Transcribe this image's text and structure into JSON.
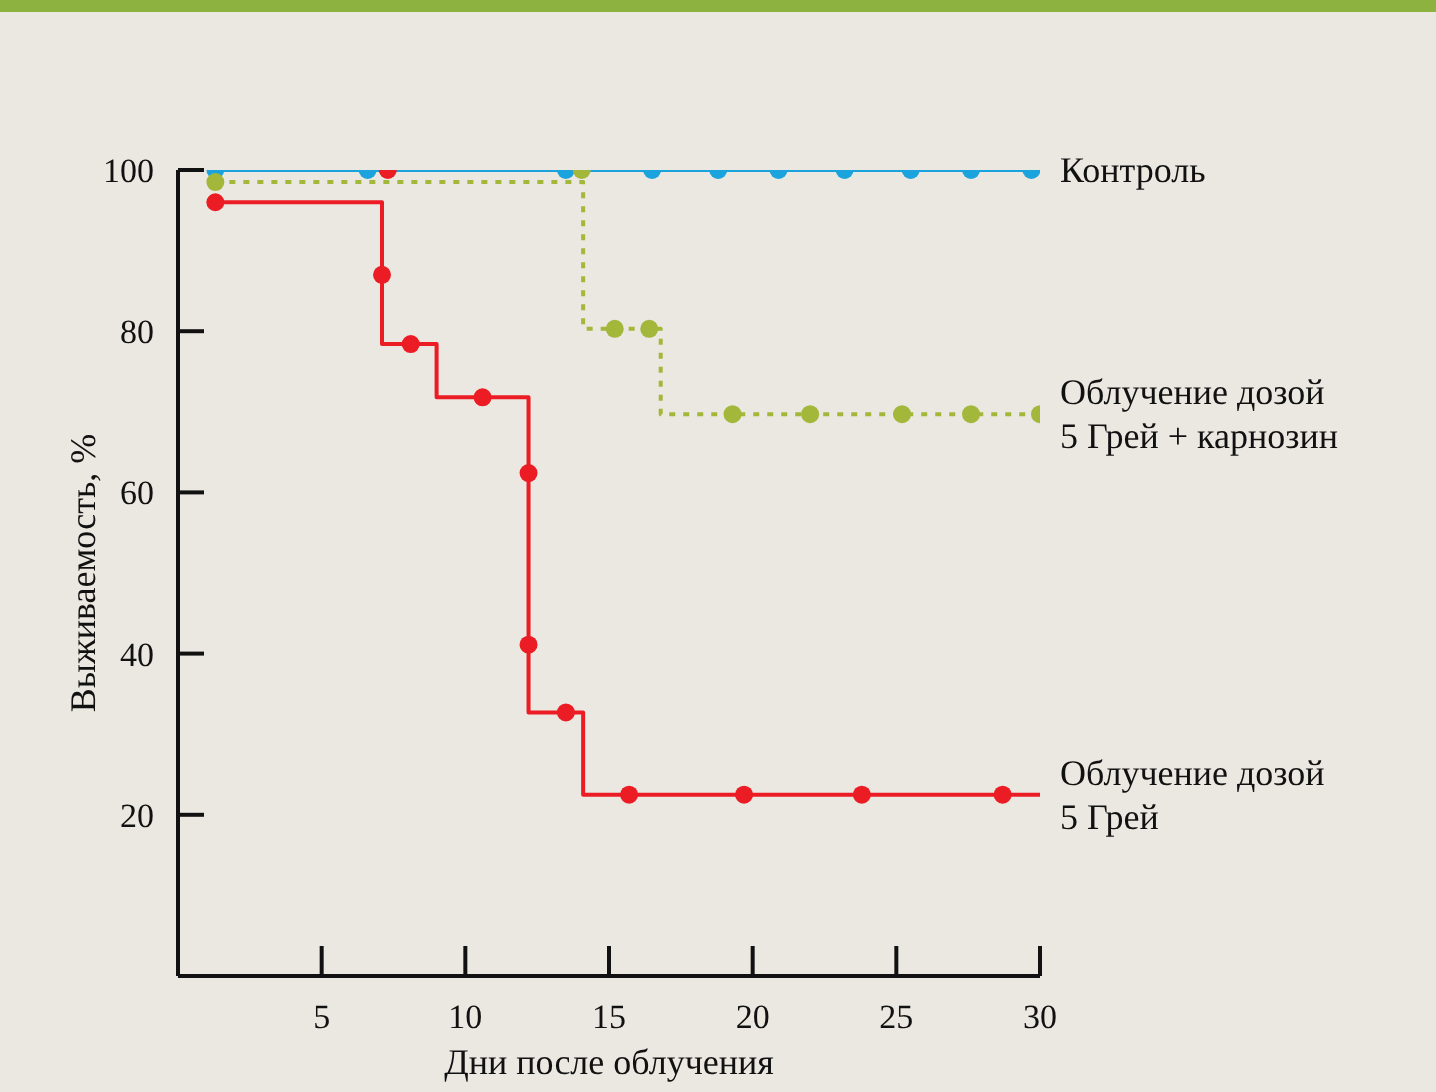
{
  "chart_data": {
    "type": "step",
    "xlabel": "Дни после облучения",
    "ylabel": "Выживаемость, %",
    "xlim": [
      0,
      30
    ],
    "ylim": [
      0,
      100
    ],
    "xticks": [
      5,
      10,
      15,
      20,
      25,
      30
    ],
    "yticks": [
      20,
      40,
      60,
      80,
      100
    ],
    "grid": false,
    "legend": false,
    "series": [
      {
        "name": "Контроль",
        "color": "#1aa3dc",
        "line_style": "solid",
        "marker": "none",
        "x": [
          1.3,
          30
        ],
        "values": [
          100,
          100
        ]
      },
      {
        "type": "scatter",
        "color": "#1aa3dc",
        "marker": "circle",
        "x": [
          1.3,
          6.6,
          13.5,
          16.5,
          18.8,
          20.9,
          23.2,
          25.5,
          27.6,
          29.7
        ],
        "values": [
          100,
          100,
          100,
          100,
          100,
          100,
          100,
          100,
          100,
          100
        ]
      },
      {
        "name": "Облучение дозой 5 Грей + карнозин",
        "color": "#a3b83a",
        "line_style": "dotted",
        "marker": "none",
        "x": [
          1.3,
          14.1,
          16.8,
          30
        ],
        "values": [
          98.5,
          80.3,
          69.7,
          69.7
        ]
      },
      {
        "type": "scatter",
        "color": "#a3b83a",
        "marker": "circle",
        "x": [
          1.3,
          14.05,
          15.2,
          16.4,
          19.3,
          22,
          25.2,
          27.6,
          30
        ],
        "values": [
          98.5,
          100,
          80.3,
          80.3,
          69.7,
          69.7,
          69.7,
          69.7,
          69.7
        ]
      },
      {
        "name": "Облучение дозой 5 Грей",
        "color": "#ec1c24",
        "line_style": "solid",
        "marker": "none",
        "x": [
          1.3,
          7.1,
          9.0,
          12.2,
          14.1,
          30
        ],
        "values": [
          96,
          78.4,
          71.8,
          32.7,
          22.5,
          22.5
        ]
      },
      {
        "type": "scatter",
        "color": "#ec1c24",
        "marker": "circle",
        "x": [
          1.3,
          7.3,
          7.1,
          8.1,
          10.6,
          12.2,
          12.2,
          13.5,
          15.7,
          19.7,
          23.8,
          28.7
        ],
        "values": [
          96,
          100,
          87,
          78.4,
          71.8,
          62.4,
          41.1,
          32.7,
          22.5,
          22.5,
          22.5,
          22.5
        ]
      }
    ]
  }
}
